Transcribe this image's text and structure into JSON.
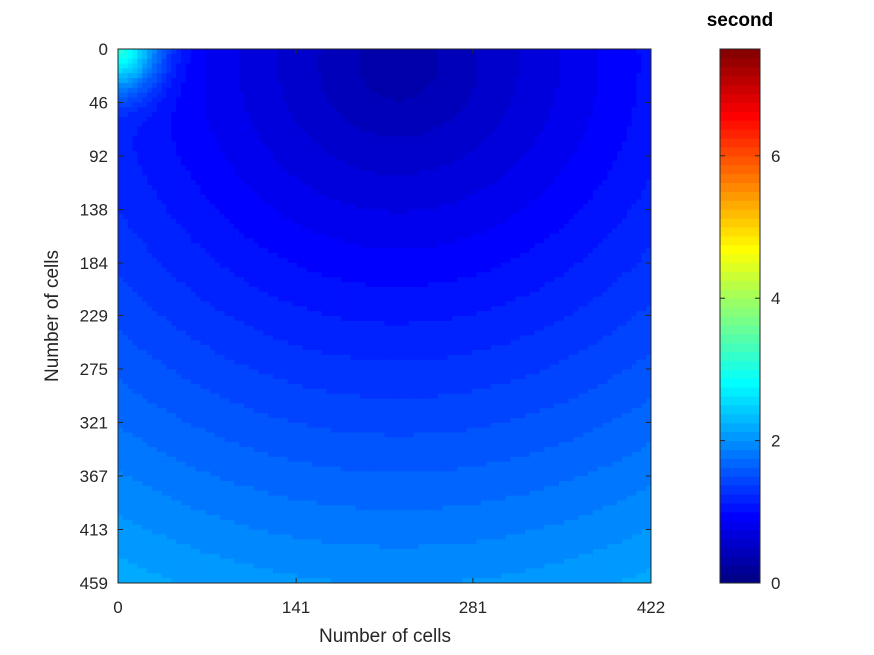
{
  "chart_data": {
    "type": "heatmap",
    "title": "",
    "xlabel": "Number of cells",
    "ylabel": "Number of cells",
    "x_ticks": [
      "0",
      "141",
      "281",
      "422"
    ],
    "y_ticks": [
      "0",
      "46",
      "92",
      "138",
      "184",
      "229",
      "275",
      "321",
      "367",
      "413",
      "459"
    ],
    "xlim": [
      0,
      422
    ],
    "ylim": [
      0,
      459
    ],
    "y_direction": "reversed",
    "colormap": "jet",
    "colorbar": {
      "title": "second",
      "ticks": [
        "0",
        "2",
        "4",
        "6"
      ],
      "limits": [
        0,
        7.5
      ]
    },
    "field": {
      "description_free": true,
      "minimum_location": [
        222,
        12
      ],
      "minimum_value": 0.25,
      "corner_values": {
        "top_left": 3.2,
        "top_right": 1.2,
        "bottom_left": 2.3,
        "bottom_right": 1.4
      },
      "levels": 60
    }
  }
}
